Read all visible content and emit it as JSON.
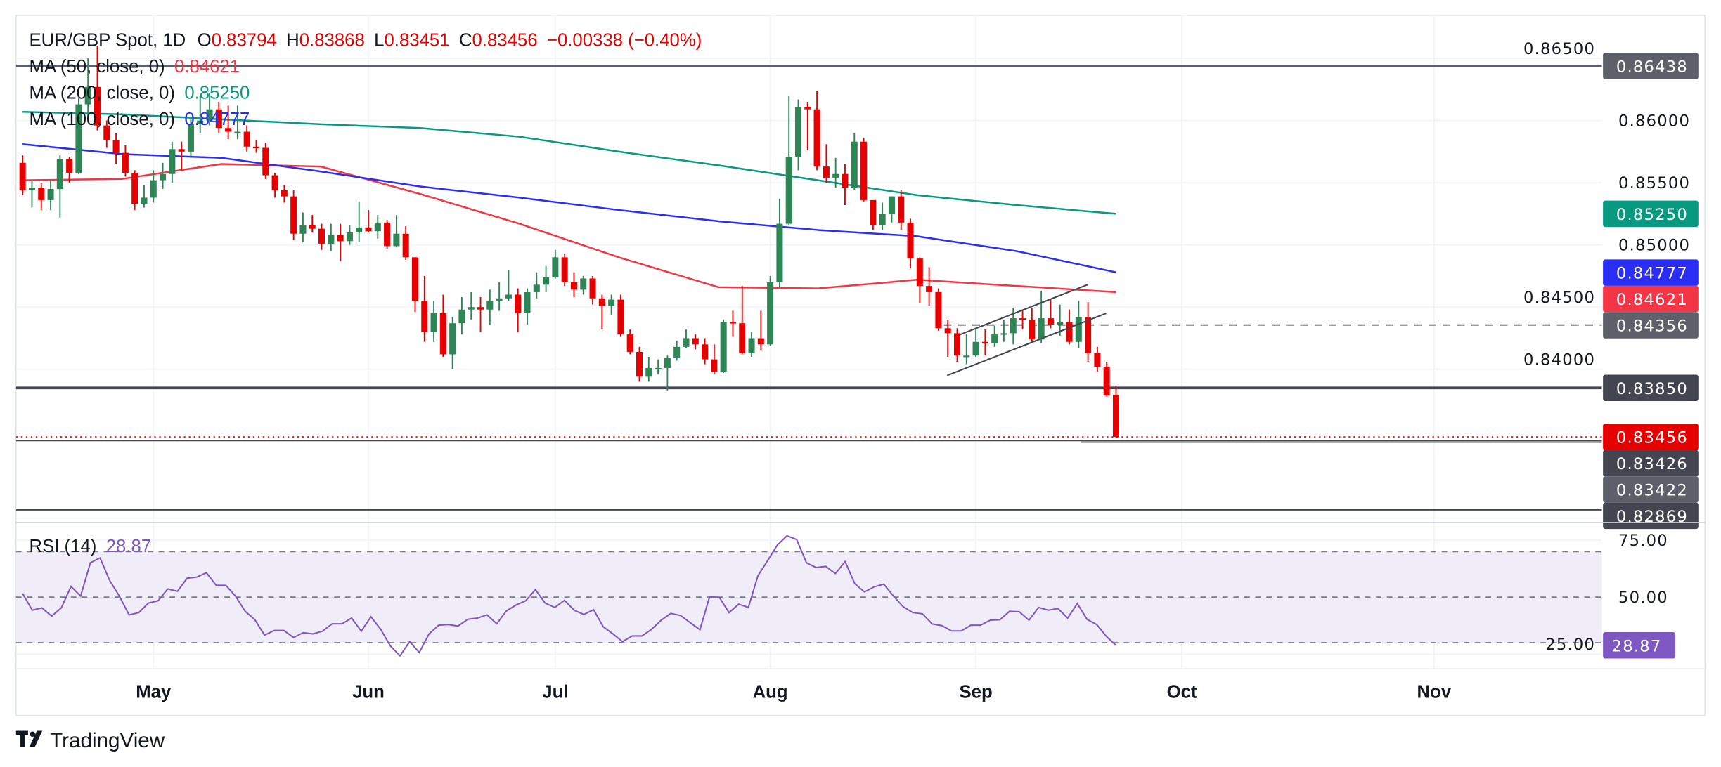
{
  "header": {
    "symbol": "EUR/GBP Spot, 1D",
    "o_label": "O",
    "o": "0.83794",
    "h_label": "H",
    "h": "0.83868",
    "l_label": "L",
    "l": "0.83451",
    "c_label": "C",
    "c": "0.83456",
    "change": "−0.00338 (−0.40%)"
  },
  "indicators": [
    {
      "name": "MA (50, close, 0)",
      "value": "0.84621",
      "color": "#f23645"
    },
    {
      "name": "MA (200, close, 0)",
      "value": "0.85250",
      "color": "#089981"
    },
    {
      "name": "MA (100, close, 0)",
      "value": "0.84777",
      "color": "#2962ff"
    }
  ],
  "rsi_legend": {
    "name": "RSI (14)",
    "value": "28.87",
    "color": "#7e57c2"
  },
  "brand": "TradingView",
  "colors": {
    "up": "#2e8555",
    "down": "#e60000",
    "ma50": "#f23645",
    "ma100": "#2a2ef5",
    "ma200": "#089981",
    "rsi": "#7e57c2",
    "rsi_band": "#f0edf8"
  },
  "chart_data": [
    {
      "type": "candlestick",
      "title": "EUR/GBP Spot, 1D",
      "ylim": [
        0.828,
        0.866
      ],
      "y_ticks": [
        "0.86500",
        "0.86000",
        "0.85500",
        "0.85000",
        "0.84500",
        "0.84000"
      ],
      "y_tick_values": [
        0.865,
        0.86,
        0.855,
        0.85,
        0.845,
        0.84
      ],
      "x_ticks": [
        "May",
        "Jun",
        "Jul",
        "Aug",
        "Sep",
        "Oct",
        "Nov"
      ],
      "grid": true,
      "candles_ohlc": [
        [
          0.8566,
          0.8572,
          0.854,
          0.8544
        ],
        [
          0.8544,
          0.8552,
          0.853,
          0.8546
        ],
        [
          0.8546,
          0.855,
          0.8528,
          0.8536
        ],
        [
          0.8536,
          0.8552,
          0.8528,
          0.8545
        ],
        [
          0.8545,
          0.8572,
          0.8522,
          0.8569
        ],
        [
          0.8569,
          0.8571,
          0.855,
          0.8558
        ],
        [
          0.8558,
          0.8618,
          0.8557,
          0.8613
        ],
        [
          0.8613,
          0.865,
          0.86,
          0.8627
        ],
        [
          0.8627,
          0.866,
          0.8592,
          0.8596
        ],
        [
          0.8596,
          0.86,
          0.8578,
          0.8584
        ],
        [
          0.8584,
          0.859,
          0.8565,
          0.8574
        ],
        [
          0.8574,
          0.858,
          0.8555,
          0.8558
        ],
        [
          0.8558,
          0.856,
          0.8528,
          0.8533
        ],
        [
          0.8533,
          0.8548,
          0.853,
          0.8538
        ],
        [
          0.8538,
          0.856,
          0.8534,
          0.8552
        ],
        [
          0.8552,
          0.8566,
          0.8545,
          0.8557
        ],
        [
          0.8557,
          0.8583,
          0.855,
          0.8577
        ],
        [
          0.8577,
          0.8583,
          0.856,
          0.8575
        ],
        [
          0.8575,
          0.8602,
          0.857,
          0.8597
        ],
        [
          0.8597,
          0.862,
          0.859,
          0.86
        ],
        [
          0.86,
          0.8622,
          0.8596,
          0.8609
        ],
        [
          0.8609,
          0.8615,
          0.859,
          0.8594
        ],
        [
          0.8594,
          0.8612,
          0.8585,
          0.8591
        ],
        [
          0.8591,
          0.8612,
          0.8585,
          0.8591
        ],
        [
          0.8591,
          0.8596,
          0.8575,
          0.8579
        ],
        [
          0.8579,
          0.8584,
          0.8574,
          0.8578
        ],
        [
          0.8578,
          0.8582,
          0.8553,
          0.8556
        ],
        [
          0.8556,
          0.8558,
          0.8538,
          0.8544
        ],
        [
          0.8544,
          0.8548,
          0.8534,
          0.8539
        ],
        [
          0.8539,
          0.8544,
          0.8504,
          0.8509
        ],
        [
          0.8509,
          0.8526,
          0.8502,
          0.8516
        ],
        [
          0.8516,
          0.8524,
          0.851,
          0.8513
        ],
        [
          0.8513,
          0.8517,
          0.8496,
          0.8501
        ],
        [
          0.8501,
          0.8517,
          0.8495,
          0.8508
        ],
        [
          0.8508,
          0.8517,
          0.8487,
          0.8503
        ],
        [
          0.8503,
          0.8516,
          0.85,
          0.851
        ],
        [
          0.851,
          0.8535,
          0.8502,
          0.8514
        ],
        [
          0.8514,
          0.8528,
          0.851,
          0.8511
        ],
        [
          0.8511,
          0.8524,
          0.8505,
          0.8518
        ],
        [
          0.8518,
          0.852,
          0.8497,
          0.8499
        ],
        [
          0.8499,
          0.8524,
          0.8498,
          0.8509
        ],
        [
          0.8509,
          0.8515,
          0.8488,
          0.849
        ],
        [
          0.849,
          0.849,
          0.8446,
          0.8455
        ],
        [
          0.8455,
          0.8475,
          0.8422,
          0.843
        ],
        [
          0.843,
          0.8455,
          0.8422,
          0.8445
        ],
        [
          0.8445,
          0.846,
          0.841,
          0.8412
        ],
        [
          0.8412,
          0.8442,
          0.84,
          0.8437
        ],
        [
          0.8437,
          0.8458,
          0.8428,
          0.8448
        ],
        [
          0.8448,
          0.8462,
          0.844,
          0.845
        ],
        [
          0.845,
          0.8458,
          0.843,
          0.8448
        ],
        [
          0.8448,
          0.8464,
          0.8436,
          0.8455
        ],
        [
          0.8455,
          0.847,
          0.8447,
          0.8457
        ],
        [
          0.8457,
          0.848,
          0.8455,
          0.846
        ],
        [
          0.846,
          0.8465,
          0.843,
          0.8445
        ],
        [
          0.8445,
          0.8465,
          0.8436,
          0.8462
        ],
        [
          0.8462,
          0.8478,
          0.8457,
          0.8468
        ],
        [
          0.8468,
          0.8483,
          0.8462,
          0.8474
        ],
        [
          0.8474,
          0.8496,
          0.8473,
          0.849
        ],
        [
          0.849,
          0.8493,
          0.8467,
          0.847
        ],
        [
          0.847,
          0.8478,
          0.8458,
          0.8464
        ],
        [
          0.8464,
          0.8475,
          0.846,
          0.8473
        ],
        [
          0.8473,
          0.8475,
          0.8452,
          0.8457
        ],
        [
          0.8457,
          0.846,
          0.8432,
          0.8451
        ],
        [
          0.8451,
          0.846,
          0.8444,
          0.8456
        ],
        [
          0.8456,
          0.846,
          0.8426,
          0.8428
        ],
        [
          0.8428,
          0.8432,
          0.8412,
          0.8414
        ],
        [
          0.8414,
          0.8418,
          0.839,
          0.8394
        ],
        [
          0.8394,
          0.841,
          0.839,
          0.8401
        ],
        [
          0.8401,
          0.8408,
          0.8396,
          0.8401
        ],
        [
          0.8401,
          0.8411,
          0.8383,
          0.8409
        ],
        [
          0.8409,
          0.8423,
          0.8407,
          0.8418
        ],
        [
          0.8418,
          0.8432,
          0.8417,
          0.8425
        ],
        [
          0.8425,
          0.8428,
          0.8416,
          0.842
        ],
        [
          0.842,
          0.8425,
          0.8404,
          0.8408
        ],
        [
          0.8408,
          0.842,
          0.8396,
          0.8398
        ],
        [
          0.8398,
          0.844,
          0.8397,
          0.8438
        ],
        [
          0.8438,
          0.8447,
          0.8426,
          0.8437
        ],
        [
          0.8437,
          0.8467,
          0.8412,
          0.8413
        ],
        [
          0.8413,
          0.843,
          0.841,
          0.8425
        ],
        [
          0.8425,
          0.8447,
          0.8415,
          0.842
        ],
        [
          0.842,
          0.8475,
          0.8419,
          0.847
        ],
        [
          0.847,
          0.8537,
          0.8466,
          0.8517
        ],
        [
          0.8517,
          0.862,
          0.8516,
          0.8571
        ],
        [
          0.8571,
          0.8617,
          0.856,
          0.8611
        ],
        [
          0.8611,
          0.8615,
          0.8576,
          0.8609
        ],
        [
          0.8609,
          0.8624,
          0.856,
          0.8563
        ],
        [
          0.8563,
          0.8581,
          0.855,
          0.8554
        ],
        [
          0.8554,
          0.857,
          0.8546,
          0.8557
        ],
        [
          0.8557,
          0.8565,
          0.8532,
          0.8546
        ],
        [
          0.8546,
          0.859,
          0.8544,
          0.8583
        ],
        [
          0.8583,
          0.8586,
          0.8535,
          0.8536
        ],
        [
          0.8536,
          0.8536,
          0.8512,
          0.8516
        ],
        [
          0.8516,
          0.8534,
          0.8512,
          0.8525
        ],
        [
          0.8525,
          0.8539,
          0.8518,
          0.8539
        ],
        [
          0.8539,
          0.8544,
          0.8512,
          0.8518
        ],
        [
          0.8518,
          0.8521,
          0.8481,
          0.8489
        ],
        [
          0.8489,
          0.849,
          0.8453,
          0.8467
        ],
        [
          0.8467,
          0.8482,
          0.8451,
          0.8462
        ],
        [
          0.8462,
          0.8465,
          0.8431,
          0.8433
        ],
        [
          0.8433,
          0.844,
          0.841,
          0.8429
        ],
        [
          0.8429,
          0.8433,
          0.8406,
          0.8411
        ],
        [
          0.8411,
          0.8428,
          0.8404,
          0.8411
        ],
        [
          0.8411,
          0.8433,
          0.841,
          0.8422
        ],
        [
          0.8422,
          0.8432,
          0.8411,
          0.8421
        ],
        [
          0.8421,
          0.8435,
          0.8418,
          0.8428
        ],
        [
          0.8428,
          0.844,
          0.8422,
          0.8429
        ],
        [
          0.8429,
          0.8449,
          0.842,
          0.8441
        ],
        [
          0.8441,
          0.8448,
          0.8432,
          0.844
        ],
        [
          0.844,
          0.8449,
          0.8422,
          0.8424
        ],
        [
          0.8424,
          0.8463,
          0.8421,
          0.8441
        ],
        [
          0.8441,
          0.8456,
          0.8433,
          0.8436
        ],
        [
          0.8436,
          0.8452,
          0.8427,
          0.8438
        ],
        [
          0.8438,
          0.8448,
          0.842,
          0.8422
        ],
        [
          0.8422,
          0.8455,
          0.8417,
          0.8442
        ],
        [
          0.8442,
          0.8454,
          0.8406,
          0.8413
        ],
        [
          0.8413,
          0.8418,
          0.8398,
          0.8402
        ],
        [
          0.8402,
          0.8406,
          0.8378,
          0.8379
        ],
        [
          0.83794,
          0.83868,
          0.83451,
          0.83456
        ]
      ],
      "moving_averages": [
        {
          "name": "MA (50, close, 0)",
          "color": "#f23645",
          "values": [
            0.8552,
            0.8553,
            0.8565,
            0.8563,
            0.8541,
            0.8517,
            0.849,
            0.8466,
            0.8465,
            0.8472,
            0.8467,
            0.8462
          ]
        },
        {
          "name": "MA (100, close, 0)",
          "color": "#2a2ef5",
          "values": [
            0.8581,
            0.8573,
            0.857,
            0.8559,
            0.8547,
            0.8538,
            0.8528,
            0.8519,
            0.8512,
            0.8507,
            0.8495,
            0.8478
          ]
        },
        {
          "name": "MA (200, close, 0)",
          "color": "#089981",
          "values": [
            0.8607,
            0.8605,
            0.8601,
            0.8597,
            0.8594,
            0.8587,
            0.8575,
            0.8564,
            0.8552,
            0.854,
            0.8532,
            0.8525
          ]
        }
      ],
      "horizontal_levels": [
        {
          "price": 0.86438,
          "label": "0.86438",
          "style": "solid-thick",
          "color": "#5d606b"
        },
        {
          "price": 0.8385,
          "label": "0.83850",
          "style": "solid-thick",
          "color": "#434651"
        },
        {
          "price": 0.84356,
          "label": "0.84356",
          "style": "dashed",
          "color": "#5d606b"
        },
        {
          "price": 0.83426,
          "label": "0.83426",
          "style": "solid",
          "color": "#434651"
        },
        {
          "price": 0.83422,
          "label": "0.83422",
          "style": "short",
          "color": "#5d606b"
        },
        {
          "price": 0.82869,
          "label": "0.82869",
          "style": "solid",
          "color": "#434651"
        }
      ],
      "price_labels": [
        {
          "label": "0.85250",
          "price": 0.8525,
          "color": "#089981"
        },
        {
          "label": "0.84777",
          "price": 0.84777,
          "color": "#2a2ef5"
        },
        {
          "label": "0.84621",
          "price": 0.84621,
          "color": "#f23645"
        },
        {
          "label": "0.83456",
          "price": 0.83456,
          "color": "#e60000"
        }
      ],
      "last_price": 0.83456,
      "channel": {
        "upper": {
          "start_price": 0.8428,
          "end_price": 0.8468
        },
        "lower": {
          "start_price": 0.8395,
          "end_price": 0.8445
        }
      }
    },
    {
      "type": "line",
      "title": "RSI (14)",
      "ylim": [
        20,
        80
      ],
      "y_ticks": [
        "75.00",
        "50.00",
        "25.00"
      ],
      "y_tick_values": [
        75,
        50,
        25
      ],
      "band": [
        30,
        70
      ],
      "levels": [
        70,
        50,
        30
      ],
      "last_label": "28.87",
      "values": [
        51.6,
        44.3,
        45.3,
        41.7,
        45.3,
        54.7,
        50.5,
        65.1,
        67.2,
        57.3,
        50.5,
        42.2,
        43.2,
        47.4,
        48.4,
        53.6,
        52.6,
        58.3,
        58.8,
        60.7,
        55.2,
        55.2,
        50.5,
        43.8,
        40.1,
        33.3,
        35.4,
        35.4,
        32.3,
        34.4,
        33.9,
        35.1,
        38.3,
        38.3,
        40.8,
        35.1,
        41.4,
        35.9,
        28.6,
        24.3,
        30.5,
        25.7,
        33.9,
        37.7,
        38.0,
        37.3,
        40.3,
        40.8,
        42.2,
        38.3,
        44.0,
        46.6,
        48.4,
        53.3,
        47.4,
        45.5,
        48.6,
        44.3,
        42.4,
        44.5,
        37.0,
        33.9,
        30.5,
        33.0,
        33.0,
        35.9,
        39.9,
        42.9,
        41.9,
        38.8,
        35.7,
        50.2,
        49.9,
        43.2,
        46.9,
        45.5,
        59.4,
        66.1,
        72.9,
        76.9,
        75.3,
        65.1,
        63.0,
        63.5,
        60.4,
        65.6,
        55.9,
        52.3,
        54.5,
        55.7,
        50.5,
        45.8,
        43.2,
        42.7,
        38.2,
        37.5,
        35.2,
        35.2,
        37.7,
        37.7,
        39.9,
        40.1,
        43.8,
        43.6,
        39.9,
        45.5,
        44.3,
        45.0,
        40.8,
        47.2,
        40.3,
        38.0,
        32.8,
        28.87
      ]
    }
  ]
}
